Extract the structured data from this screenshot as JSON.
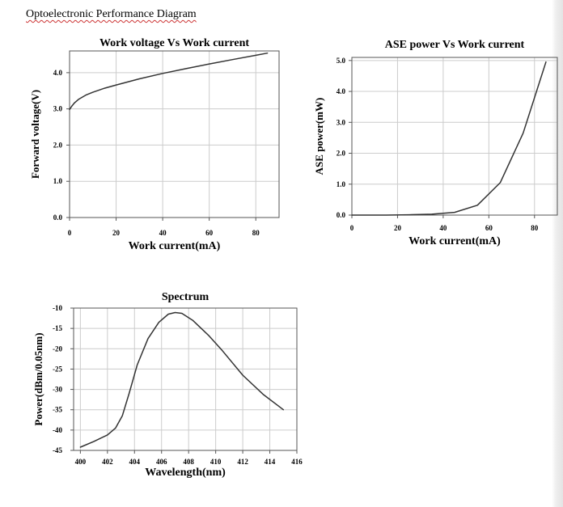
{
  "page": {
    "title": "Optoelectronic Performance Diagram"
  },
  "colors": {
    "line": "#333333",
    "grid": "#cccccc",
    "axis": "#555555"
  },
  "chart_data": [
    {
      "id": "voltage",
      "type": "line",
      "title": "Work voltage Vs Work current",
      "xlabel": "Work current(mA)",
      "ylabel": "Forward voltage(V)",
      "xlim": [
        0,
        90
      ],
      "ylim": [
        0,
        4.6
      ],
      "xticks": [
        0,
        20,
        40,
        60,
        80
      ],
      "xtick_labels": [
        "0",
        "20",
        "40",
        "60",
        "80"
      ],
      "yticks": [
        0,
        1,
        2,
        3,
        4
      ],
      "ytick_labels": [
        "0.0",
        "1.0",
        "2.0",
        "3.0",
        "4.0"
      ],
      "series": [
        {
          "name": "Forward voltage",
          "x": [
            0,
            1,
            2,
            4,
            7,
            10,
            15,
            20,
            30,
            40,
            50,
            60,
            70,
            80,
            85
          ],
          "y": [
            2.98,
            3.08,
            3.16,
            3.27,
            3.38,
            3.46,
            3.57,
            3.66,
            3.83,
            3.98,
            4.11,
            4.24,
            4.36,
            4.48,
            4.54
          ]
        }
      ]
    },
    {
      "id": "ase",
      "type": "line",
      "title": "ASE power Vs Work current",
      "xlabel": "Work current(mA)",
      "ylabel": "ASE power(mW)",
      "xlim": [
        0,
        90
      ],
      "ylim": [
        0,
        5.1
      ],
      "xticks": [
        0,
        20,
        40,
        60,
        80
      ],
      "xtick_labels": [
        "0",
        "20",
        "40",
        "60",
        "80"
      ],
      "yticks": [
        0,
        1,
        2,
        3,
        4,
        5
      ],
      "ytick_labels": [
        "0.0",
        "1.0",
        "2.0",
        "3.0",
        "4.0",
        "5.0"
      ],
      "series": [
        {
          "name": "ASE power",
          "x": [
            0,
            15,
            25,
            35,
            45,
            55,
            65,
            75,
            85
          ],
          "y": [
            0.0,
            0.0,
            0.01,
            0.03,
            0.09,
            0.32,
            1.05,
            2.65,
            4.95
          ]
        }
      ]
    },
    {
      "id": "spectrum",
      "type": "line",
      "title": "Spectrum",
      "xlabel": "Wavelength(nm)",
      "ylabel": "Power(dBm/0.05nm)",
      "xlim": [
        399.5,
        416
      ],
      "ylim": [
        -45,
        -10
      ],
      "xticks": [
        400,
        402,
        404,
        406,
        408,
        410,
        412,
        414,
        416
      ],
      "xtick_labels": [
        "400",
        "402",
        "404",
        "406",
        "408",
        "410",
        "412",
        "414",
        "416"
      ],
      "yticks": [
        -10,
        -15,
        -20,
        -25,
        -30,
        -35,
        -40,
        -45
      ],
      "ytick_labels": [
        "-10",
        "-15",
        "-20",
        "-25",
        "-30",
        "-35",
        "-40",
        "-45"
      ],
      "series": [
        {
          "name": "Spectrum",
          "x": [
            400,
            401,
            402,
            402.6,
            403.1,
            403.6,
            404.2,
            405,
            405.8,
            406.5,
            407,
            407.5,
            408.3,
            409.5,
            410.5,
            412,
            413.5,
            415
          ],
          "y": [
            -44.2,
            -42.8,
            -41.2,
            -39.5,
            -36.5,
            -31,
            -24,
            -17.5,
            -13.5,
            -11.5,
            -11.1,
            -11.3,
            -13,
            -16.8,
            -20.5,
            -26.5,
            -31.2,
            -35.0
          ]
        }
      ]
    }
  ]
}
